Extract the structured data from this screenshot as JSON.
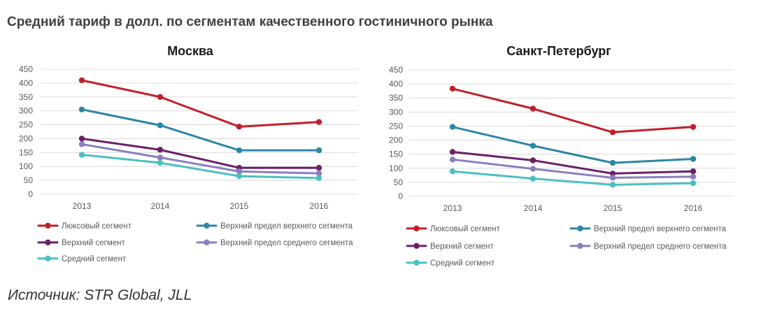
{
  "page": {
    "title": "Средний тариф в долл. по сегментам качественного гостиничного рынка",
    "source": "Источник: STR Global, JLL"
  },
  "colors": {
    "luxury": "#c0202a",
    "upper_upper": "#2c86a4",
    "upper": "#6b2068",
    "upper_mid": "#8a7ebf",
    "mid": "#4cbfc2",
    "grid": "#d9d9d9",
    "tick": "#595959"
  },
  "chart_data": [
    {
      "type": "line",
      "title": "Москва",
      "x": [
        "2013",
        "2014",
        "2015",
        "2016"
      ],
      "ylim": [
        0,
        450
      ],
      "yticks": [
        "0",
        "50",
        "100",
        "150",
        "200",
        "250",
        "300",
        "350",
        "400",
        "450"
      ],
      "grid": true,
      "legend_position": "bottom",
      "series": [
        {
          "name": "Люксовый сегмент",
          "color_key": "luxury",
          "values": [
            410,
            350,
            243,
            260
          ]
        },
        {
          "name": "Верхний предел верхнего сегмента",
          "color_key": "upper_upper",
          "values": [
            305,
            248,
            158,
            158
          ]
        },
        {
          "name": "Верхний сегмент",
          "color_key": "upper",
          "values": [
            200,
            160,
            95,
            95
          ]
        },
        {
          "name": "Верхний предел среднего сегмента",
          "color_key": "upper_mid",
          "values": [
            180,
            132,
            82,
            75
          ]
        },
        {
          "name": "Средний сегмент",
          "color_key": "mid",
          "values": [
            142,
            113,
            65,
            58
          ]
        }
      ]
    },
    {
      "type": "line",
      "title": "Санкт-Петербург",
      "x": [
        "2013",
        "2014",
        "2015",
        "2016"
      ],
      "ylim": [
        0,
        450
      ],
      "yticks": [
        "0",
        "50",
        "100",
        "150",
        "200",
        "250",
        "300",
        "350",
        "400",
        "450"
      ],
      "grid": true,
      "legend_position": "bottom",
      "series": [
        {
          "name": "Люксовый сегмент",
          "color_key": "luxury",
          "values": [
            383,
            312,
            228,
            247
          ]
        },
        {
          "name": "Верхний предел верхнего сегмента",
          "color_key": "upper_upper",
          "values": [
            247,
            180,
            119,
            133
          ]
        },
        {
          "name": "Верхний сегмент",
          "color_key": "upper",
          "values": [
            158,
            128,
            81,
            89
          ]
        },
        {
          "name": "Верхний предел среднего сегмента",
          "color_key": "upper_mid",
          "values": [
            131,
            98,
            66,
            70
          ]
        },
        {
          "name": "Средний сегмент",
          "color_key": "mid",
          "values": [
            89,
            63,
            41,
            47
          ]
        }
      ]
    }
  ]
}
